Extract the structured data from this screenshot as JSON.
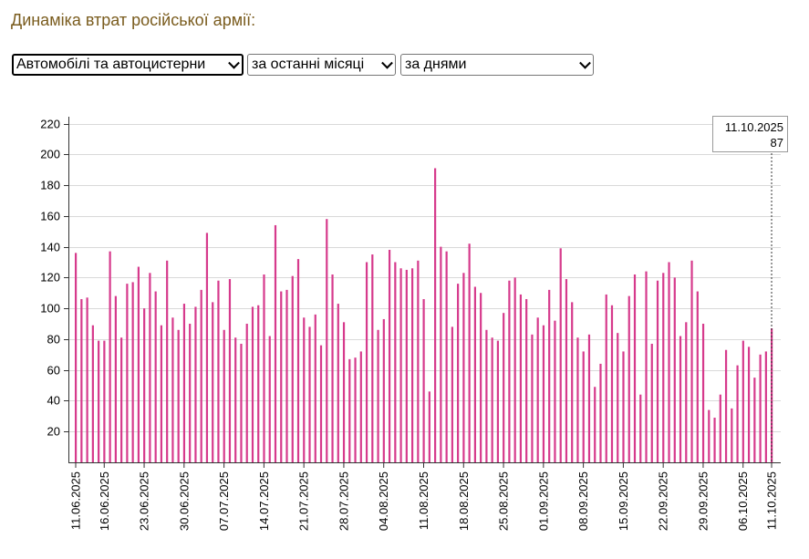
{
  "header": {
    "title": "Динаміка втрат російської армії:"
  },
  "filters": {
    "category": "Автомобілі та автоцистерни",
    "period": "за останні місяці",
    "granularity": "за днями"
  },
  "colors": {
    "bar": "#d63a8c",
    "grid": "#d9d9d9",
    "axis": "#333333",
    "title": "#7a5c1e"
  },
  "chart_data": {
    "type": "bar",
    "title": "",
    "xlabel": "",
    "ylabel": "",
    "ylim": [
      0,
      220
    ],
    "yticks": [
      20,
      40,
      60,
      80,
      100,
      120,
      140,
      160,
      180,
      200,
      220
    ],
    "grid": true,
    "start_date": "11.06.2025",
    "end_date": "11.10.2025",
    "tick_labels": [
      "11.06.2025",
      "16.06.2025",
      "23.06.2025",
      "30.06.2025",
      "07.07.2025",
      "14.07.2025",
      "21.07.2025",
      "28.07.2025",
      "04.08.2025",
      "11.08.2025",
      "18.08.2025",
      "25.08.2025",
      "01.09.2025",
      "08.09.2025",
      "15.09.2025",
      "22.09.2025",
      "29.09.2025",
      "06.10.2025",
      "11.10.2025"
    ],
    "tick_day_offsets": [
      0,
      5,
      12,
      19,
      26,
      33,
      40,
      47,
      54,
      61,
      68,
      75,
      82,
      89,
      96,
      103,
      110,
      117,
      122
    ],
    "values": [
      136,
      106,
      107,
      89,
      79,
      79,
      137,
      108,
      81,
      116,
      117,
      127,
      100,
      123,
      111,
      89,
      131,
      94,
      86,
      103,
      90,
      101,
      112,
      149,
      104,
      118,
      86,
      119,
      81,
      77,
      90,
      101,
      102,
      122,
      82,
      154,
      111,
      112,
      121,
      132,
      94,
      88,
      96,
      76,
      158,
      122,
      103,
      91,
      67,
      68,
      72,
      130,
      135,
      86,
      93,
      138,
      130,
      126,
      125,
      126,
      131,
      106,
      46,
      191,
      140,
      137,
      88,
      116,
      123,
      142,
      114,
      110,
      86,
      81,
      79,
      97,
      118,
      120,
      109,
      106,
      83,
      94,
      89,
      112,
      92,
      139,
      119,
      104,
      81,
      72,
      83,
      49,
      64,
      109,
      102,
      84,
      72,
      108,
      122,
      44,
      124,
      77,
      118,
      123,
      130,
      120,
      82,
      91,
      131,
      111,
      90,
      34,
      29,
      44,
      73,
      35,
      63,
      79,
      75,
      55,
      70,
      72,
      87
    ],
    "tooltip": {
      "date": "11.10.2025",
      "value": "87"
    }
  }
}
